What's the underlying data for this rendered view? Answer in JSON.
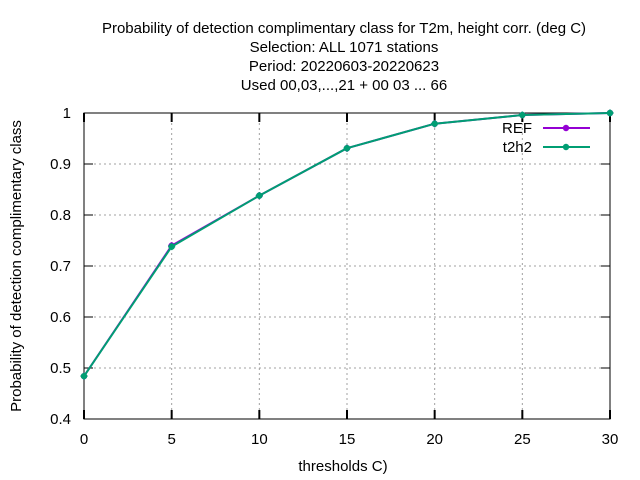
{
  "chart_data": {
    "type": "line",
    "title_lines": [
      "Probability of detection complimentary class  for T2m, height corr. (deg C)",
      "Selection: ALL   1071 stations",
      "Period: 20220603-20220623",
      "Used  00,03,...,21  + 00 03 ... 66"
    ],
    "xlabel": "thresholds C)",
    "ylabel": "Probability of detection complimentary class",
    "xlim": [
      0,
      30
    ],
    "ylim": [
      0.4,
      1.0
    ],
    "xticks": [
      0,
      5,
      10,
      15,
      20,
      25,
      30
    ],
    "yticks": [
      0.4,
      0.5,
      0.6,
      0.7,
      0.8,
      0.9,
      1.0
    ],
    "ytick_labels": [
      "0.4",
      "0.5",
      "0.6",
      "0.7",
      "0.8",
      "0.9",
      "1"
    ],
    "grid": true,
    "legend_position": "top-right",
    "x": [
      0,
      5,
      10,
      15,
      20,
      25,
      30
    ],
    "series": [
      {
        "name": "REF",
        "color": "#9400d3",
        "values": [
          0.484,
          0.74,
          0.838,
          0.931,
          0.979,
          0.996,
          1.0
        ]
      },
      {
        "name": "t2h2",
        "color": "#009e73",
        "values": [
          0.484,
          0.738,
          0.838,
          0.931,
          0.979,
          0.996,
          1.0
        ]
      }
    ]
  }
}
